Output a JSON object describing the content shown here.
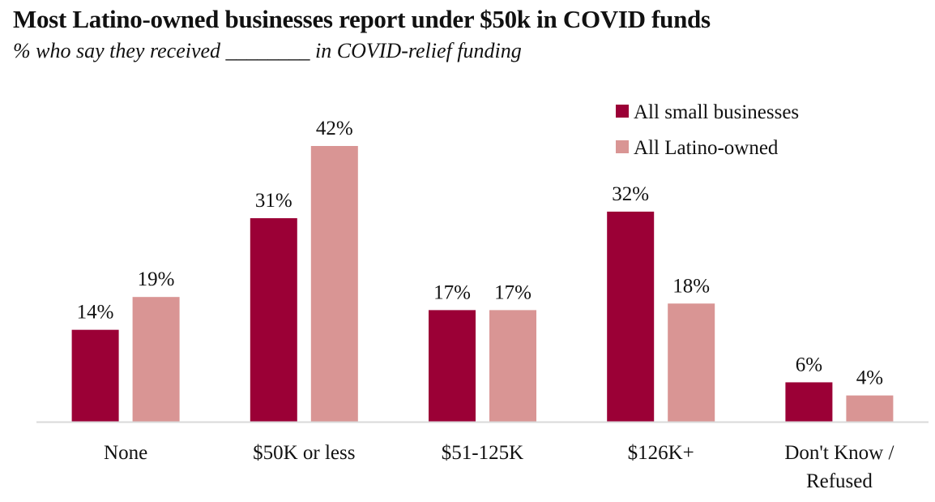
{
  "chart_data": {
    "type": "bar",
    "title": "Most Latino-owned businesses report under $50k in COVID funds",
    "subtitle": "% who say they received ________ in COVID-relief funding",
    "xlabel": "",
    "ylabel": "",
    "ylim": [
      0,
      45
    ],
    "grid": false,
    "legend_position": "top-right",
    "categories": [
      [
        "None"
      ],
      [
        "$50K or less"
      ],
      [
        "$51-125K"
      ],
      [
        "$126K+"
      ],
      [
        "Don't Know /",
        "Refused"
      ]
    ],
    "series": [
      {
        "name": "All small businesses",
        "color": "#9B0036",
        "values": [
          14,
          31,
          17,
          32,
          6
        ],
        "labels": [
          "14%",
          "31%",
          "17%",
          "32%",
          "6%"
        ]
      },
      {
        "name": "All Latino-owned",
        "color": "#D99594",
        "values": [
          19,
          42,
          17,
          18,
          4
        ],
        "labels": [
          "19%",
          "42%",
          "17%",
          "18%",
          "4%"
        ]
      }
    ],
    "axis_color": "#D9D9D9"
  }
}
